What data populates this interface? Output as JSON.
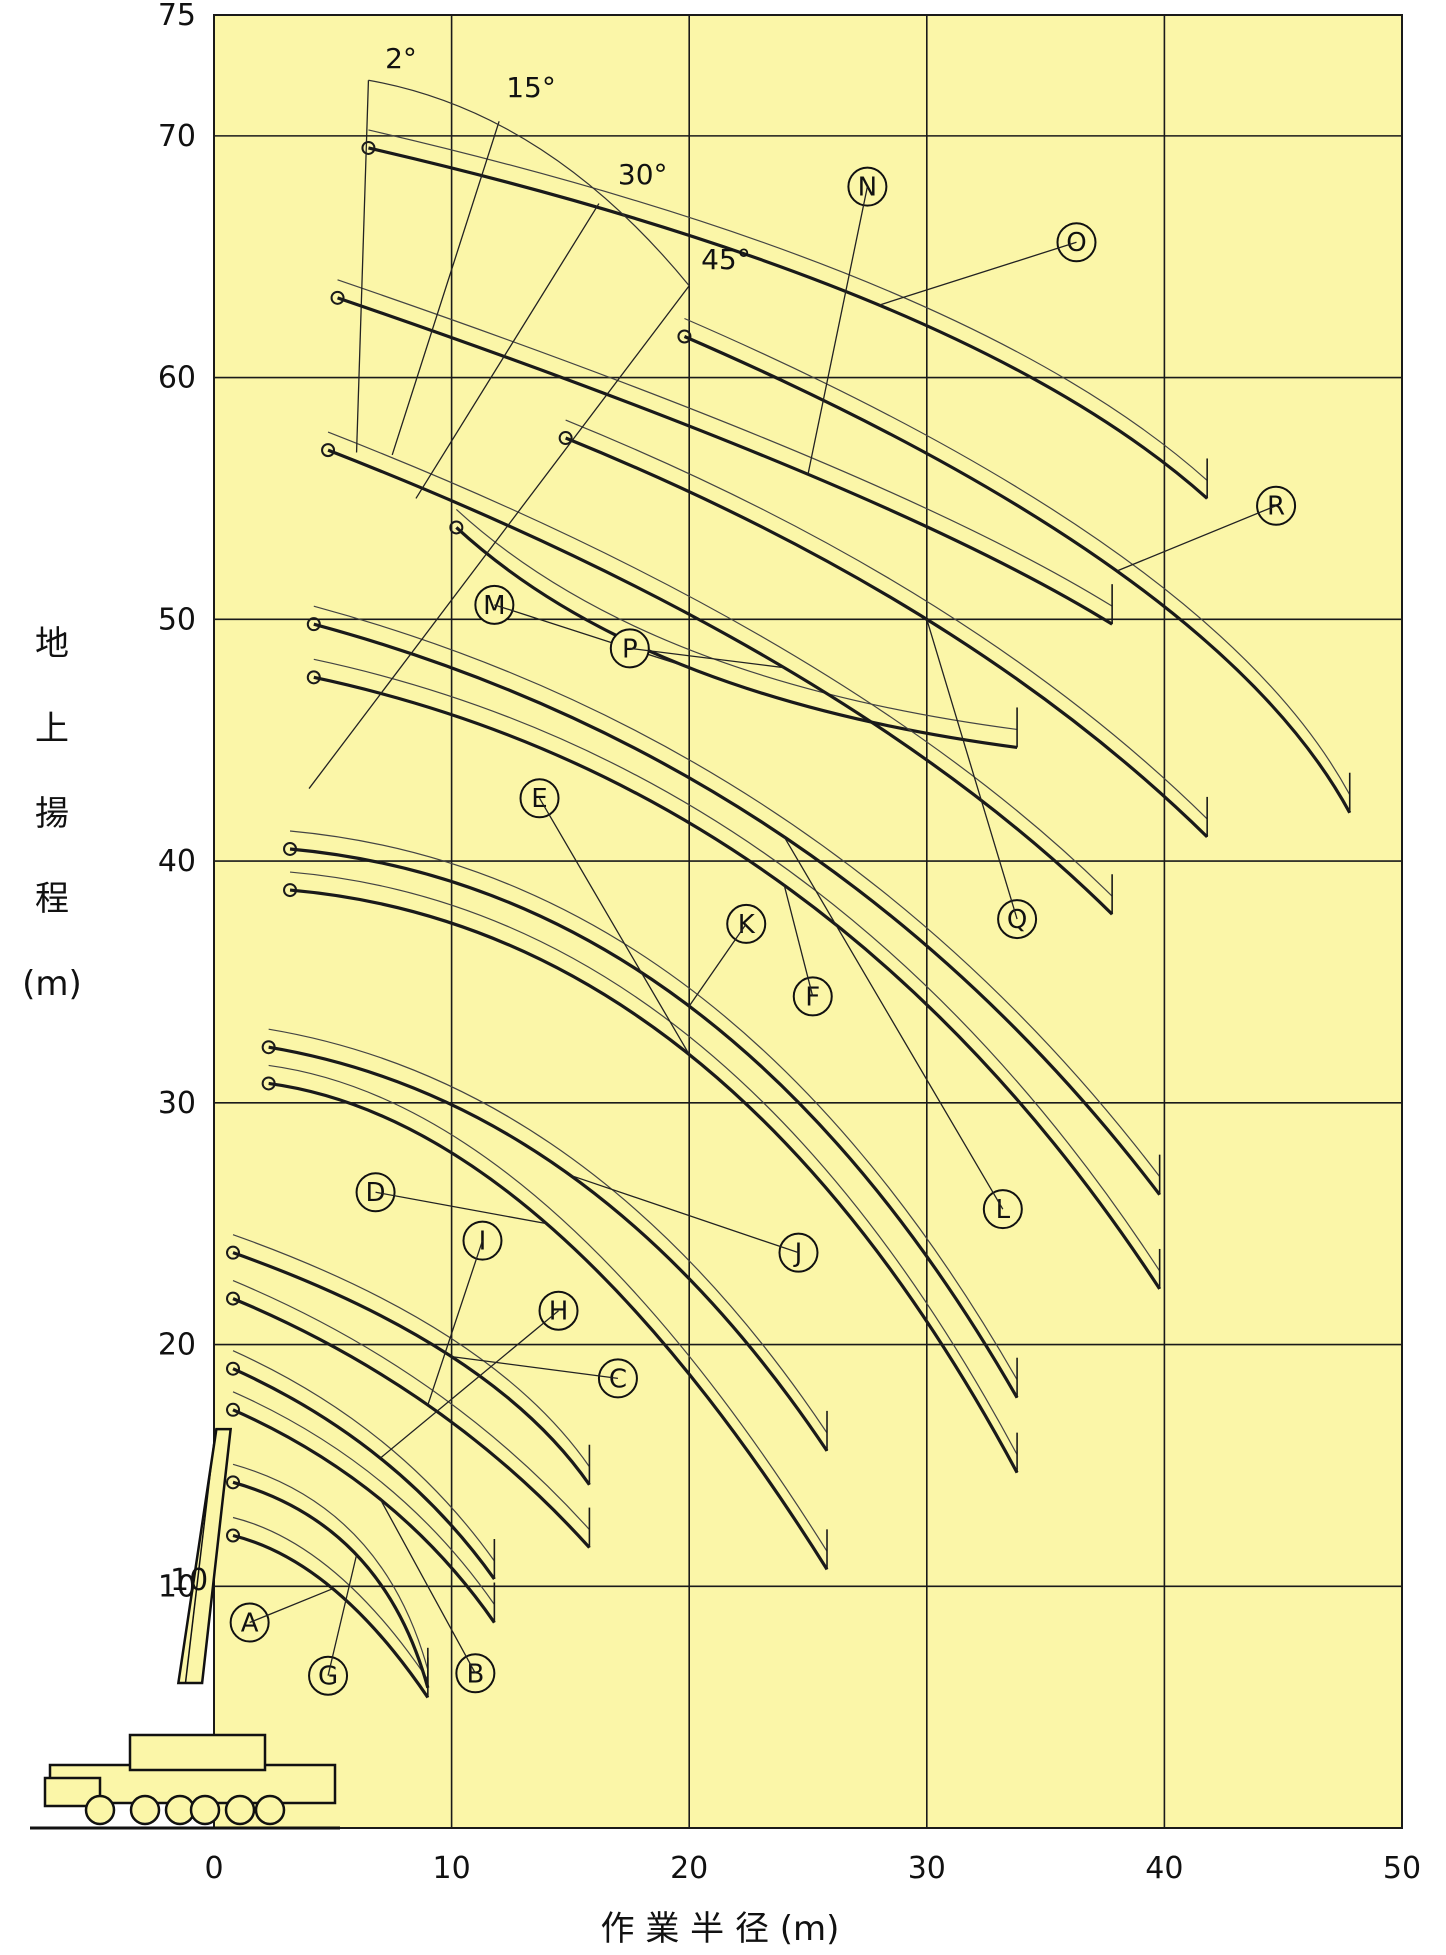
{
  "chart_data": {
    "type": "line",
    "title": "",
    "xlabel": "作 業 半 径 (m)",
    "ylabel_chars": [
      "地",
      "上",
      "揚",
      "程",
      "(m)"
    ],
    "xlim": [
      0,
      50
    ],
    "ylim": [
      0,
      75
    ],
    "xticks": [
      0,
      10,
      20,
      30,
      40,
      50
    ],
    "yticks": [
      10,
      20,
      30,
      40,
      50,
      60,
      70,
      75
    ],
    "grid": true,
    "colors": {
      "background": "#fbf6a8",
      "grid": "#1a1a1a",
      "curve": "#1a1a1a",
      "curve_light": "#444444"
    },
    "boom_angles": [
      "2°",
      "15°",
      "30°",
      "45°"
    ],
    "series": [
      {
        "name": "A",
        "x": [
          0.8,
          5,
          9
        ],
        "y": [
          12.1,
          9.9,
          5.4
        ],
        "label_at": [
          1.5,
          8.5
        ]
      },
      {
        "name": "G",
        "x": [
          0.8,
          6,
          9
        ],
        "y": [
          14.3,
          11.3,
          5.8
        ],
        "label_at": [
          4.8,
          6.3
        ]
      },
      {
        "name": "B",
        "x": [
          0.8,
          7,
          11.8
        ],
        "y": [
          17.3,
          13.6,
          8.5
        ],
        "label_at": [
          11,
          6.4
        ]
      },
      {
        "name": "H",
        "x": [
          0.8,
          7,
          11.8
        ],
        "y": [
          19.0,
          15.3,
          10.3
        ],
        "label_at": [
          14.5,
          21.4
        ]
      },
      {
        "name": "I",
        "x": [
          0.8,
          9,
          15.8
        ],
        "y": [
          21.9,
          17.5,
          11.6
        ],
        "label_at": [
          11.3,
          24.3
        ]
      },
      {
        "name": "C",
        "x": [
          0.8,
          10,
          15.8
        ],
        "y": [
          23.8,
          19.5,
          14.2
        ],
        "label_at": [
          17,
          18.6
        ]
      },
      {
        "name": "D",
        "x": [
          2.3,
          14,
          25.8
        ],
        "y": [
          30.8,
          25,
          10.7
        ],
        "label_at": [
          6.8,
          26.3
        ]
      },
      {
        "name": "J",
        "x": [
          2.3,
          15,
          25.8
        ],
        "y": [
          32.3,
          27,
          15.6
        ],
        "label_at": [
          24.6,
          23.8
        ]
      },
      {
        "name": "E",
        "x": [
          3.2,
          20,
          33.8
        ],
        "y": [
          38.8,
          32,
          14.7
        ],
        "label_at": [
          13.7,
          42.6
        ]
      },
      {
        "name": "K",
        "x": [
          3.2,
          20,
          33.8
        ],
        "y": [
          40.5,
          34,
          17.8
        ],
        "label_at": [
          22.4,
          37.4
        ]
      },
      {
        "name": "F",
        "x": [
          4.2,
          24,
          39.8
        ],
        "y": [
          47.6,
          39,
          22.3
        ],
        "label_at": [
          25.2,
          34.4
        ]
      },
      {
        "name": "L",
        "x": [
          4.2,
          24,
          39.8
        ],
        "y": [
          49.8,
          41,
          26.2
        ],
        "label_at": [
          33.2,
          25.6
        ]
      },
      {
        "name": "M",
        "x": [
          10.2,
          20,
          33.8
        ],
        "y": [
          53.8,
          48,
          44.7
        ],
        "label_at": [
          11.8,
          50.6
        ]
      },
      {
        "name": "P",
        "x": [
          4.8,
          24,
          37.8
        ],
        "y": [
          57.0,
          48,
          37.8
        ],
        "label_at": [
          17.5,
          48.8
        ]
      },
      {
        "name": "Q",
        "x": [
          14.8,
          30,
          41.8
        ],
        "y": [
          57.5,
          50,
          41.0
        ],
        "label_at": [
          33.8,
          37.6
        ]
      },
      {
        "name": "N",
        "x": [
          5.2,
          25,
          37.8
        ],
        "y": [
          63.3,
          56,
          49.8
        ],
        "label_at": [
          27.5,
          67.9
        ]
      },
      {
        "name": "R",
        "x": [
          19.8,
          38,
          47.8
        ],
        "y": [
          61.7,
          52,
          42.0
        ],
        "label_at": [
          44.7,
          54.7
        ]
      },
      {
        "name": "O",
        "x": [
          6.5,
          28,
          41.8
        ],
        "y": [
          69.5,
          63,
          55.0
        ],
        "label_at": [
          36.3,
          65.6
        ]
      }
    ]
  }
}
